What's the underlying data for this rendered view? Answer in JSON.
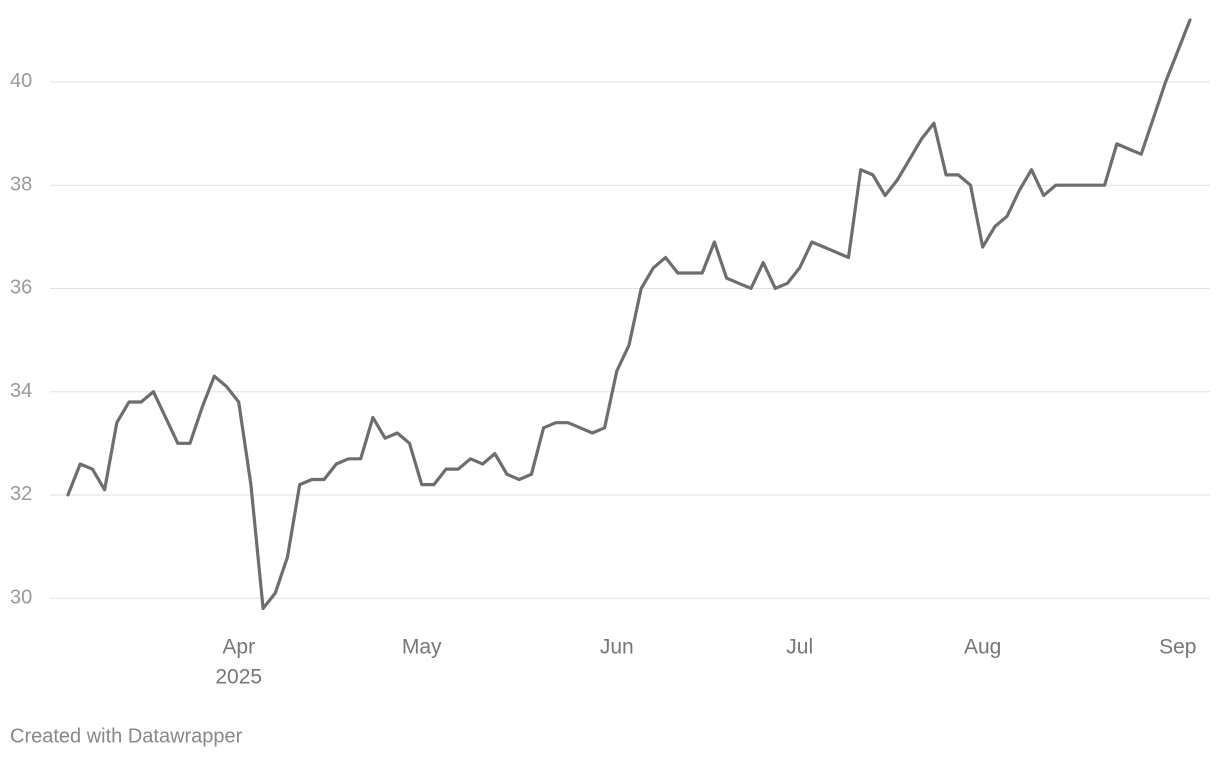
{
  "chart_data": {
    "type": "line",
    "categories": [
      null,
      null,
      null,
      null,
      null,
      null,
      null,
      null,
      null,
      null,
      null,
      null,
      null,
      null,
      "Apr",
      null,
      null,
      null,
      null,
      null,
      null,
      null,
      null,
      null,
      null,
      null,
      null,
      null,
      null,
      "May",
      null,
      null,
      null,
      null,
      null,
      null,
      null,
      null,
      null,
      null,
      null,
      null,
      null,
      null,
      null,
      "Jun",
      null,
      null,
      null,
      null,
      null,
      null,
      null,
      null,
      null,
      null,
      null,
      null,
      null,
      null,
      "Jul",
      null,
      null,
      null,
      null,
      null,
      null,
      null,
      null,
      null,
      null,
      null,
      null,
      null,
      null,
      "Aug",
      null,
      null,
      null,
      null,
      null,
      null,
      null,
      null,
      null,
      null,
      null,
      null,
      null,
      null,
      null,
      "Sep",
      null
    ],
    "year_label": "2025",
    "values": [
      32.0,
      32.6,
      32.5,
      32.1,
      33.4,
      33.8,
      33.8,
      34.0,
      33.5,
      33.0,
      33.0,
      33.7,
      34.3,
      34.1,
      33.8,
      32.2,
      29.8,
      30.1,
      30.8,
      32.2,
      32.3,
      32.3,
      32.6,
      32.7,
      32.7,
      33.5,
      33.1,
      33.2,
      33.0,
      32.2,
      32.2,
      32.5,
      32.5,
      32.7,
      32.6,
      32.8,
      32.4,
      32.3,
      32.4,
      33.3,
      33.4,
      33.4,
      33.3,
      33.2,
      33.3,
      34.4,
      34.9,
      36.0,
      36.4,
      36.6,
      36.3,
      36.3,
      36.3,
      36.9,
      36.2,
      36.1,
      36.0,
      36.5,
      36.0,
      36.1,
      36.4,
      36.9,
      36.8,
      36.7,
      36.6,
      38.3,
      38.2,
      37.8,
      38.1,
      38.5,
      38.9,
      39.2,
      38.2,
      38.2,
      38.0,
      36.8,
      37.2,
      37.4,
      37.9,
      38.3,
      37.8,
      38.0,
      38.0,
      38.0,
      38.0,
      38.0,
      38.8,
      38.7,
      38.6,
      39.3,
      40.0,
      40.6,
      41.2
    ],
    "color": "#6d6d72",
    "ylim": [
      29.5,
      41.2
    ],
    "yticks": [
      30,
      32,
      34,
      36,
      38,
      40
    ],
    "grid": true,
    "source": "Created with Datawrapper"
  }
}
